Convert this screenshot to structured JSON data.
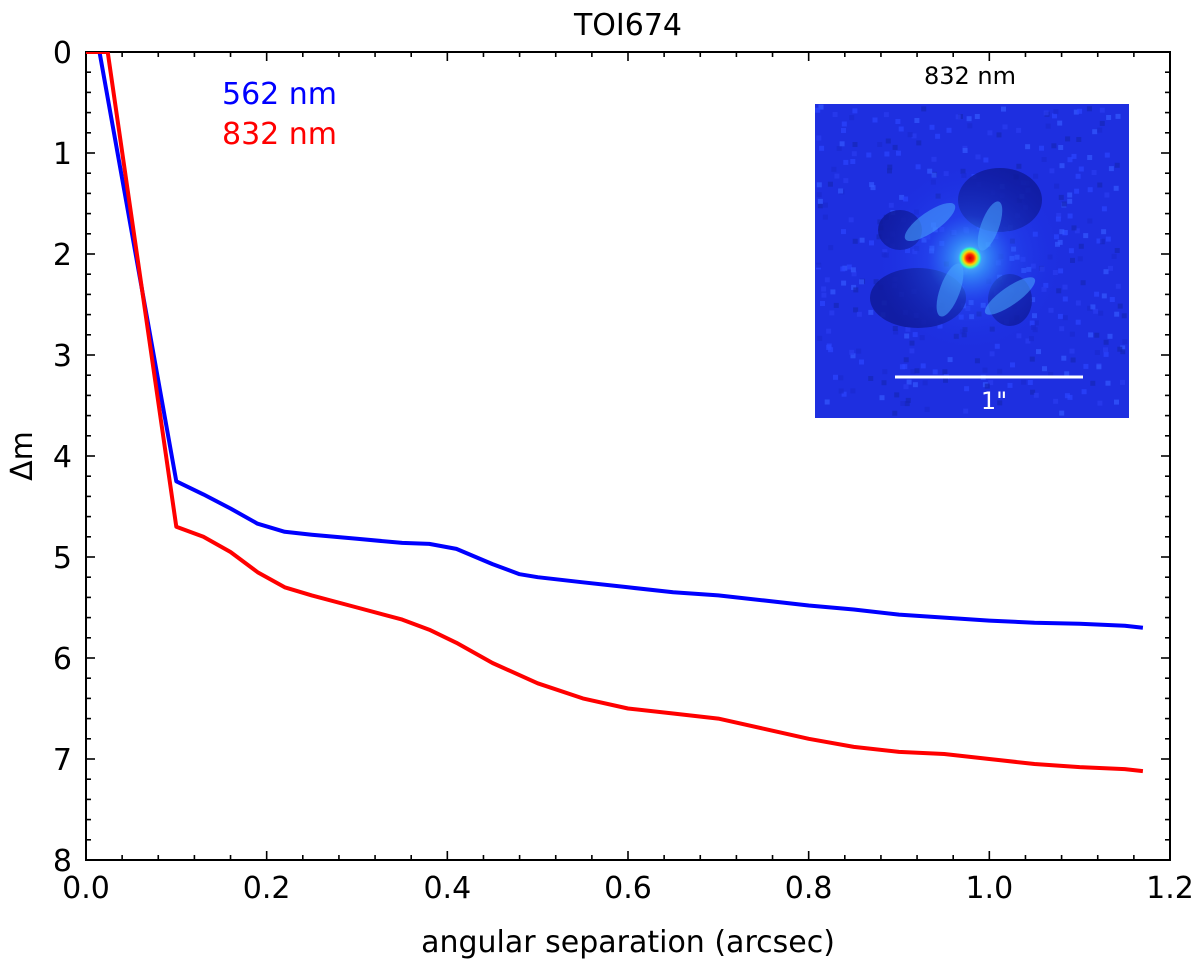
{
  "chart_data": {
    "type": "line",
    "title": "TOI674",
    "xlabel": "angular separation (arcsec)",
    "ylabel": "Δm",
    "xlim": [
      0.0,
      1.2
    ],
    "ylim": [
      8,
      0
    ],
    "y_inverted": true,
    "x_ticks": [
      "0.0",
      "0.2",
      "0.4",
      "0.6",
      "0.8",
      "1.0",
      "1.2"
    ],
    "y_ticks": [
      "0",
      "1",
      "2",
      "3",
      "4",
      "5",
      "6",
      "7",
      "8"
    ],
    "grid": false,
    "legend_position": "top-left",
    "series": [
      {
        "name": "562 nm",
        "color": "#0000ff",
        "x": [
          0.015,
          0.1,
          0.13,
          0.16,
          0.19,
          0.22,
          0.25,
          0.3,
          0.35,
          0.38,
          0.41,
          0.45,
          0.48,
          0.5,
          0.55,
          0.6,
          0.65,
          0.7,
          0.75,
          0.8,
          0.85,
          0.9,
          0.95,
          1.0,
          1.05,
          1.1,
          1.15,
          1.17
        ],
        "y": [
          0.0,
          4.25,
          4.38,
          4.52,
          4.67,
          4.75,
          4.78,
          4.82,
          4.86,
          4.87,
          4.92,
          5.07,
          5.17,
          5.2,
          5.25,
          5.3,
          5.35,
          5.38,
          5.43,
          5.48,
          5.52,
          5.57,
          5.6,
          5.63,
          5.65,
          5.66,
          5.68,
          5.7
        ]
      },
      {
        "name": "832 nm",
        "color": "#ff0000",
        "x": [
          0.024,
          0.1,
          0.13,
          0.16,
          0.19,
          0.22,
          0.25,
          0.3,
          0.35,
          0.38,
          0.41,
          0.45,
          0.5,
          0.55,
          0.6,
          0.65,
          0.7,
          0.75,
          0.8,
          0.85,
          0.9,
          0.95,
          1.0,
          1.05,
          1.1,
          1.15,
          1.17
        ],
        "y": [
          0.0,
          4.7,
          4.8,
          4.95,
          5.15,
          5.3,
          5.38,
          5.5,
          5.62,
          5.72,
          5.85,
          6.05,
          6.25,
          6.4,
          6.5,
          6.55,
          6.6,
          6.7,
          6.8,
          6.88,
          6.93,
          6.95,
          7.0,
          7.05,
          7.08,
          7.1,
          7.12
        ]
      }
    ],
    "inset": {
      "label": "832 nm",
      "scale_bar_label": "1\"",
      "colormap": "jet"
    }
  }
}
